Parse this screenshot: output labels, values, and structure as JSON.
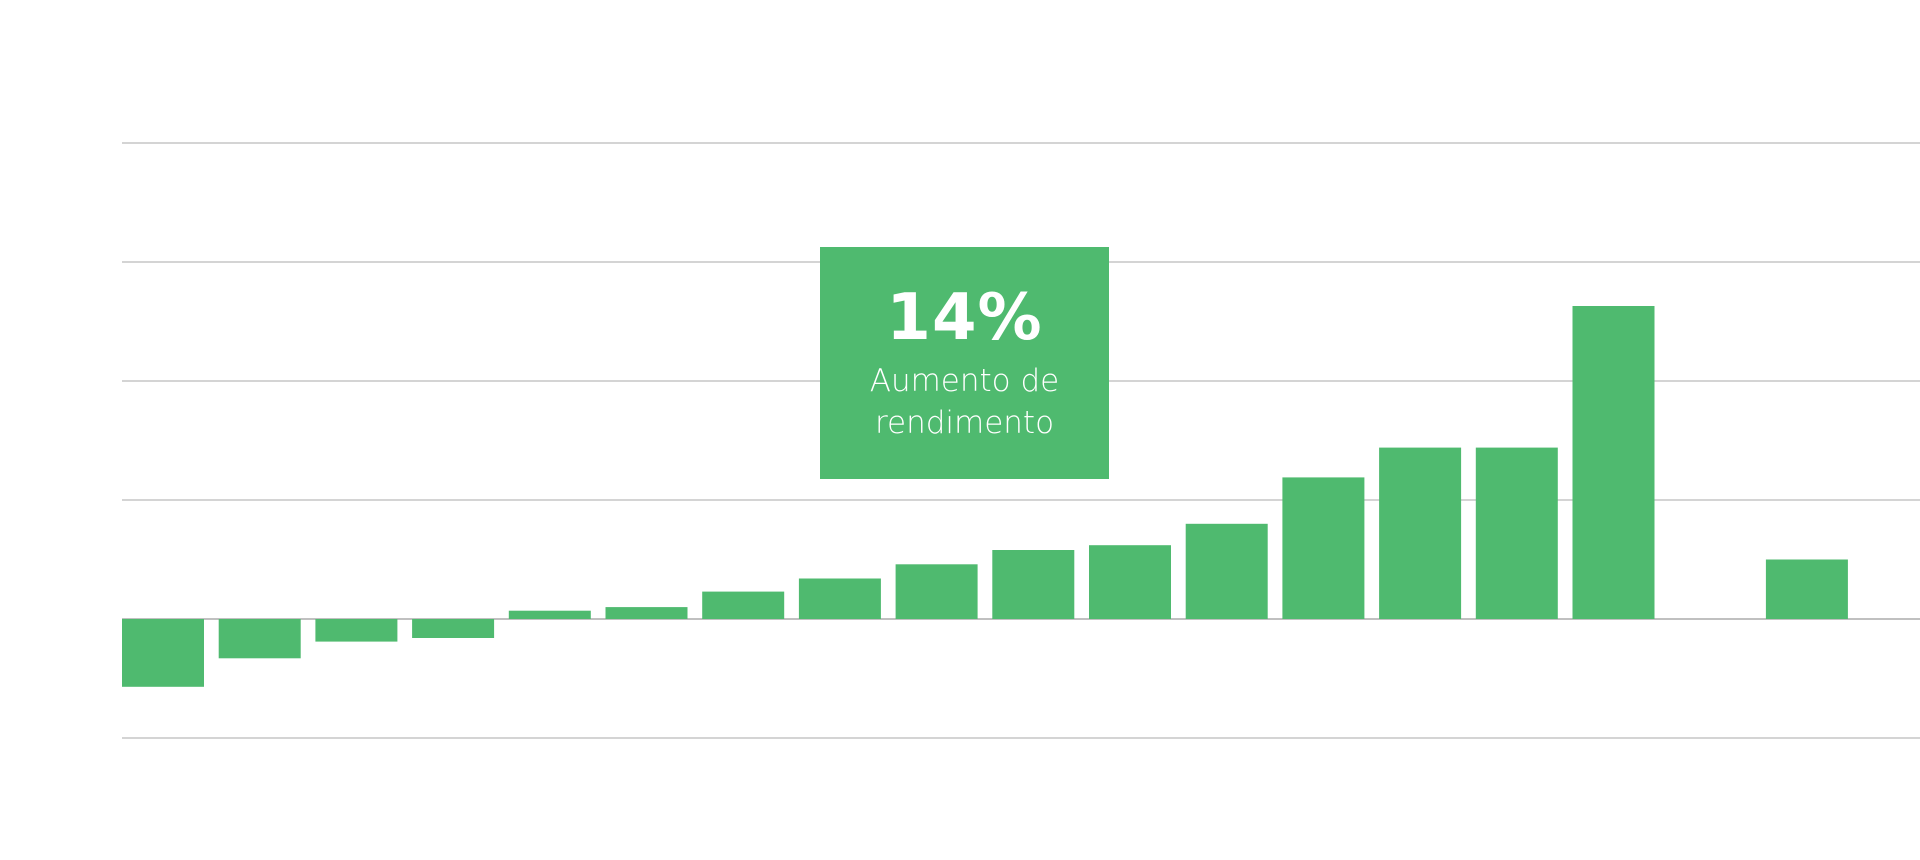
{
  "callout": {
    "value": "14%",
    "line1": "Aumento de",
    "line2": "rendimento"
  },
  "colors": {
    "bar": "#4fba6f",
    "grid": "#a8a8a8",
    "background": "#ffffff"
  },
  "chart_data": {
    "type": "bar",
    "grid": true,
    "ylim": [
      -1.0,
      4.0
    ],
    "gridlines": [
      -1.0,
      0.0,
      1.0,
      2.0,
      3.0,
      4.0
    ],
    "series": [
      {
        "values": [
          -0.57,
          -0.33,
          -0.19,
          -0.16,
          0.07,
          0.1,
          0.23,
          0.34,
          0.46,
          0.58,
          0.62,
          0.8,
          1.19,
          1.44,
          1.44,
          2.63,
          null,
          0.5
        ]
      }
    ]
  }
}
